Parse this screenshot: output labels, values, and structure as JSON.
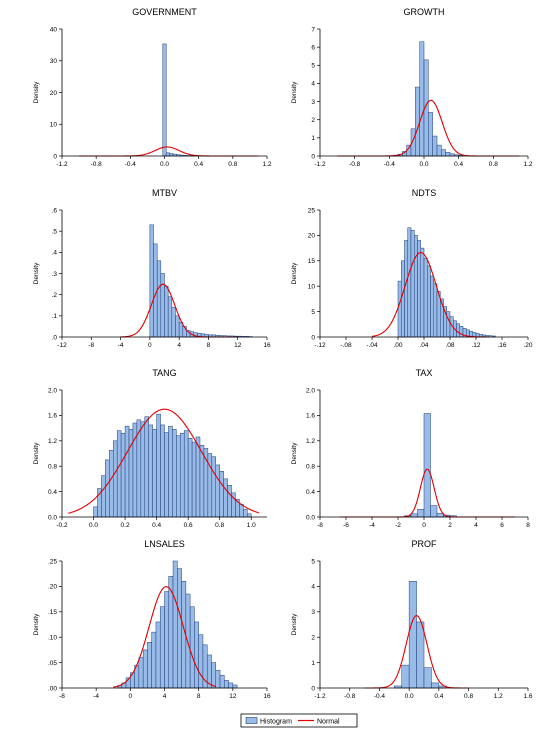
{
  "figure": {
    "legend": {
      "histogram_label": "Histogram",
      "normal_label": "Normal",
      "placement": "bottom-center"
    }
  },
  "colors": {
    "bar_fill": "#99bbe8",
    "bar_stroke": "#1f3d7a",
    "normal_curve": "#e00000",
    "axis": "#000000"
  },
  "chart_data": [
    {
      "type": "bar",
      "subtype": "histogram-with-normal-density",
      "title": "GOVERNMENT",
      "ylabel": "Density",
      "xlim": [
        -1.2,
        1.2
      ],
      "ylim": [
        0,
        40
      ],
      "xticks": [
        -1.2,
        -0.8,
        -0.4,
        0,
        0.4,
        0.8,
        1.2
      ],
      "xtick_labels": [
        "-1.2",
        "-0.8",
        "-0.4",
        "0.0",
        "0.4",
        "0.8",
        "1.2"
      ],
      "yticks": [
        0,
        10,
        20,
        30,
        40
      ],
      "ytick_labels": [
        "0",
        "10",
        "20",
        "30",
        "40"
      ],
      "bin_start": -0.02,
      "bin_width": 0.04,
      "values": [
        35.3,
        1.0,
        0.8,
        0.6,
        0.4,
        0.3,
        0.2,
        0.15,
        0.1,
        0.05
      ],
      "normal": {
        "mean": 0.03,
        "sd": 0.14
      },
      "curve_range": [
        -1.0,
        1.1
      ]
    },
    {
      "type": "bar",
      "subtype": "histogram-with-normal-density",
      "title": "GROWTH",
      "ylabel": "Density",
      "xlim": [
        -1.2,
        1.2
      ],
      "ylim": [
        0,
        7
      ],
      "xticks": [
        -1.2,
        -0.8,
        -0.4,
        0,
        0.4,
        0.8,
        1.2
      ],
      "xtick_labels": [
        "-1.2",
        "-0.8",
        "-0.4",
        "0.0",
        "0.4",
        "0.8",
        "1.2"
      ],
      "yticks": [
        0,
        1,
        2,
        3,
        4,
        5,
        6,
        7
      ],
      "ytick_labels": [
        "0",
        "1",
        "2",
        "3",
        "4",
        "5",
        "6",
        "7"
      ],
      "bin_start": -0.4,
      "bin_width": 0.05,
      "values": [
        0.02,
        0.05,
        0.1,
        0.25,
        0.6,
        1.5,
        3.8,
        6.3,
        5.3,
        2.4,
        1.1,
        0.6,
        0.35,
        0.2,
        0.12,
        0.07,
        0.04
      ],
      "normal": {
        "mean": 0.08,
        "sd": 0.13
      },
      "curve_range": [
        -1.0,
        1.1
      ]
    },
    {
      "type": "bar",
      "subtype": "histogram-with-normal-density",
      "title": "MTBV",
      "ylabel": "Density",
      "xlim": [
        -12,
        16
      ],
      "ylim": [
        0,
        0.6
      ],
      "xticks": [
        -12,
        -8,
        -4,
        0,
        4,
        8,
        12,
        16
      ],
      "xtick_labels": [
        "-12",
        "-8",
        "-4",
        "0",
        "4",
        "8",
        "12",
        "16"
      ],
      "yticks": [
        0,
        0.1,
        0.2,
        0.3,
        0.4,
        0.5,
        0.6
      ],
      "ytick_labels": [
        ".0",
        ".1",
        ".2",
        ".3",
        ".4",
        ".5",
        ".6"
      ],
      "bin_start": 0,
      "bin_width": 0.5,
      "values": [
        0.53,
        0.44,
        0.36,
        0.3,
        0.24,
        0.19,
        0.14,
        0.1,
        0.07,
        0.05,
        0.03,
        0.025,
        0.02,
        0.017,
        0.015,
        0.012,
        0.01,
        0.01,
        0.008,
        0.007,
        0.006,
        0.005,
        0.005,
        0.004,
        0.004,
        0.003,
        0.003,
        0.002
      ],
      "normal": {
        "mean": 1.8,
        "sd": 1.6
      },
      "curve_range": [
        -4,
        12
      ]
    },
    {
      "type": "bar",
      "subtype": "histogram-with-normal-density",
      "title": "NDTS",
      "ylabel": "Density",
      "xlim": [
        -0.12,
        0.2
      ],
      "ylim": [
        0,
        25
      ],
      "xticks": [
        -0.12,
        -0.08,
        -0.04,
        0,
        0.04,
        0.08,
        0.12,
        0.16,
        0.2
      ],
      "xtick_labels": [
        "-.12",
        "-.08",
        "-.04",
        ".00",
        ".04",
        ".08",
        ".12",
        ".16",
        ".20"
      ],
      "yticks": [
        0,
        5,
        10,
        15,
        20,
        25
      ],
      "ytick_labels": [
        "0",
        "5",
        "10",
        "15",
        "20",
        "25"
      ],
      "bin_start": 0,
      "bin_width": 0.005,
      "values": [
        11,
        15,
        19,
        21.5,
        21,
        20,
        19,
        17.5,
        15.5,
        14,
        12,
        10.5,
        9,
        7.5,
        6,
        5,
        4,
        3.2,
        2.6,
        2.1,
        1.7,
        1.4,
        1.1,
        0.9,
        0.7,
        0.5,
        0.4,
        0.3,
        0.25,
        0.2
      ],
      "normal": {
        "mean": 0.035,
        "sd": 0.024
      },
      "curve_range": [
        -0.04,
        0.14
      ]
    },
    {
      "type": "bar",
      "subtype": "histogram-with-normal-density",
      "title": "TANG",
      "ylabel": "Density",
      "xlim": [
        -0.2,
        1.1
      ],
      "ylim": [
        0,
        2
      ],
      "xticks": [
        -0.2,
        0,
        0.2,
        0.4,
        0.6,
        0.8,
        1.0
      ],
      "xtick_labels": [
        "-0.2",
        "0.0",
        "0.2",
        "0.4",
        "0.6",
        "0.8",
        "1.0"
      ],
      "yticks": [
        0,
        0.4,
        0.8,
        1.2,
        1.6,
        2.0
      ],
      "ytick_labels": [
        "0.0",
        "0.4",
        "0.8",
        "1.2",
        "1.6",
        "2.0"
      ],
      "bin_start": 0,
      "bin_width": 0.025,
      "values": [
        0.16,
        0.45,
        0.65,
        0.9,
        1.05,
        1.2,
        1.36,
        1.32,
        1.43,
        1.38,
        1.48,
        1.53,
        1.5,
        1.58,
        1.45,
        1.38,
        1.62,
        1.45,
        1.33,
        1.43,
        1.38,
        1.28,
        1.32,
        1.36,
        1.24,
        1.18,
        1.26,
        1.13,
        1.08,
        1.0,
        0.95,
        0.82,
        0.72,
        0.6,
        0.5,
        0.38,
        0.28,
        0.2,
        0.12,
        0.05
      ],
      "normal": {
        "mean": 0.45,
        "sd": 0.235
      },
      "curve_range": [
        -0.16,
        1.05
      ]
    },
    {
      "type": "bar",
      "subtype": "histogram-with-normal-density",
      "title": "TAX",
      "ylabel": "Density",
      "xlim": [
        -8,
        8
      ],
      "ylim": [
        0,
        2
      ],
      "xticks": [
        -8,
        -6,
        -4,
        -2,
        0,
        2,
        4,
        6,
        8
      ],
      "xtick_labels": [
        "-8",
        "-6",
        "-4",
        "-2",
        "0",
        "2",
        "4",
        "6",
        "8"
      ],
      "yticks": [
        0,
        0.4,
        0.8,
        1.2,
        1.6,
        2.0
      ],
      "ytick_labels": [
        "0.0",
        "0.4",
        "0.8",
        "1.2",
        "1.6",
        "2.0"
      ],
      "bin_start": -1.5,
      "bin_width": 0.5,
      "values": [
        0.02,
        0.05,
        0.12,
        1.63,
        0.18,
        0.06,
        0.03,
        0.02
      ],
      "normal": {
        "mean": 0.25,
        "sd": 0.53
      },
      "curve_range": [
        -6.5,
        7
      ]
    },
    {
      "type": "bar",
      "subtype": "histogram-with-normal-density",
      "title": "LNSALES",
      "ylabel": "Density",
      "xlim": [
        -8,
        16
      ],
      "ylim": [
        0,
        0.25
      ],
      "xticks": [
        -8,
        -4,
        0,
        4,
        8,
        12,
        16
      ],
      "xtick_labels": [
        "-8",
        "-4",
        "0",
        "4",
        "8",
        "12",
        "16"
      ],
      "yticks": [
        0,
        0.05,
        0.1,
        0.15,
        0.2,
        0.25
      ],
      "ytick_labels": [
        ".00",
        ".05",
        ".10",
        ".15",
        ".20",
        ".25"
      ],
      "bin_start": -1.5,
      "bin_width": 0.5,
      "values": [
        0.005,
        0.01,
        0.02,
        0.03,
        0.045,
        0.06,
        0.075,
        0.09,
        0.11,
        0.13,
        0.16,
        0.19,
        0.22,
        0.25,
        0.235,
        0.21,
        0.185,
        0.16,
        0.13,
        0.105,
        0.085,
        0.065,
        0.05,
        0.035,
        0.025,
        0.015,
        0.01,
        0.006
      ],
      "normal": {
        "mean": 4.2,
        "sd": 2.0
      },
      "curve_range": [
        -2,
        10
      ]
    },
    {
      "type": "bar",
      "subtype": "histogram-with-normal-density",
      "title": "PROF",
      "ylabel": "Density",
      "xlim": [
        -1.2,
        1.6
      ],
      "ylim": [
        0,
        5
      ],
      "xticks": [
        -1.2,
        -0.8,
        -0.4,
        0,
        0.4,
        0.8,
        1.2,
        1.6
      ],
      "xtick_labels": [
        "-1.2",
        "-0.8",
        "-0.4",
        "0.0",
        "0.4",
        "0.8",
        "1.2",
        "1.6"
      ],
      "yticks": [
        0,
        1,
        2,
        3,
        4,
        5
      ],
      "ytick_labels": [
        "0",
        "1",
        "2",
        "3",
        "4",
        "5"
      ],
      "bin_start": -0.2,
      "bin_width": 0.1,
      "values": [
        0.08,
        0.9,
        4.2,
        2.6,
        0.8,
        0.2,
        0.08
      ],
      "normal": {
        "mean": 0.1,
        "sd": 0.14
      },
      "curve_range": [
        -0.6,
        0.8
      ]
    }
  ]
}
